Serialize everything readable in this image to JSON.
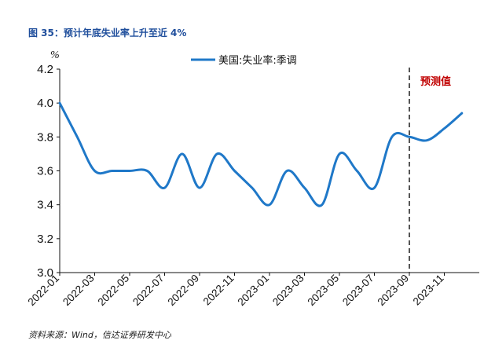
{
  "figure_title": "图 35：预计年底失业率上升至近 4%",
  "source": "资料来源：Wind，信达证券研发中心",
  "chart_data": {
    "type": "line",
    "unit_label": "%",
    "ylim": [
      3.0,
      4.2
    ],
    "yticks": [
      "3.0",
      "3.2",
      "3.4",
      "3.6",
      "3.8",
      "4.0",
      "4.2"
    ],
    "x_tick_labels": [
      "2022-01",
      "2022-03",
      "2022-05",
      "2022-07",
      "2022-09",
      "2022-11",
      "2023-01",
      "2023-03",
      "2023-05",
      "2023-07",
      "2023-09",
      "2023-11"
    ],
    "legend": {
      "position": "top-center"
    },
    "series": [
      {
        "name": "美国:失业率:季调",
        "color": "#1f78c8",
        "x": [
          "2022-01",
          "2022-02",
          "2022-03",
          "2022-04",
          "2022-05",
          "2022-06",
          "2022-07",
          "2022-08",
          "2022-09",
          "2022-10",
          "2022-11",
          "2022-12",
          "2023-01",
          "2023-02",
          "2023-03",
          "2023-04",
          "2023-05",
          "2023-06",
          "2023-07",
          "2023-08",
          "2023-09",
          "2023-10",
          "2023-11",
          "2023-12"
        ],
        "values": [
          4.0,
          3.8,
          3.6,
          3.6,
          3.6,
          3.6,
          3.5,
          3.7,
          3.5,
          3.7,
          3.6,
          3.5,
          3.4,
          3.6,
          3.5,
          3.4,
          3.7,
          3.6,
          3.5,
          3.8,
          3.8,
          3.78,
          3.85,
          3.94
        ]
      }
    ],
    "forecast_divider_at": "2023-09",
    "forecast_label": "预测值",
    "divider_color": "#555555"
  }
}
